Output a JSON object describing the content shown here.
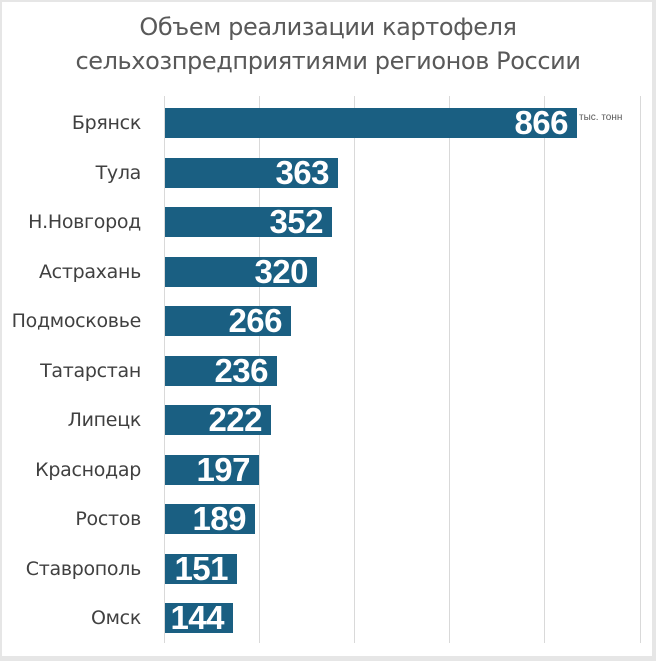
{
  "chart_data": {
    "type": "bar",
    "orientation": "horizontal",
    "title": "Объем реализации картофеля сельхозпредприятиями регионов России",
    "title_lines": [
      "Объем реализации картофеля",
      "сельхозпредприятиями регионов России"
    ],
    "categories": [
      "Брянск",
      "Тула",
      "Н.Новгород",
      "Астрахань",
      "Подмосковье",
      "Татарстан",
      "Липецк",
      "Краснодар",
      "Ростов",
      "Ставрополь",
      "Омск"
    ],
    "values": [
      866,
      363,
      352,
      320,
      266,
      236,
      222,
      197,
      189,
      151,
      144
    ],
    "unit_label": "тыс. тонн",
    "xlabel": "",
    "ylabel": "",
    "xlim": [
      0,
      1000
    ],
    "grid_step": 200,
    "grid": true,
    "legend": false,
    "bar_color": "#1a5f82",
    "data_labels": true
  }
}
